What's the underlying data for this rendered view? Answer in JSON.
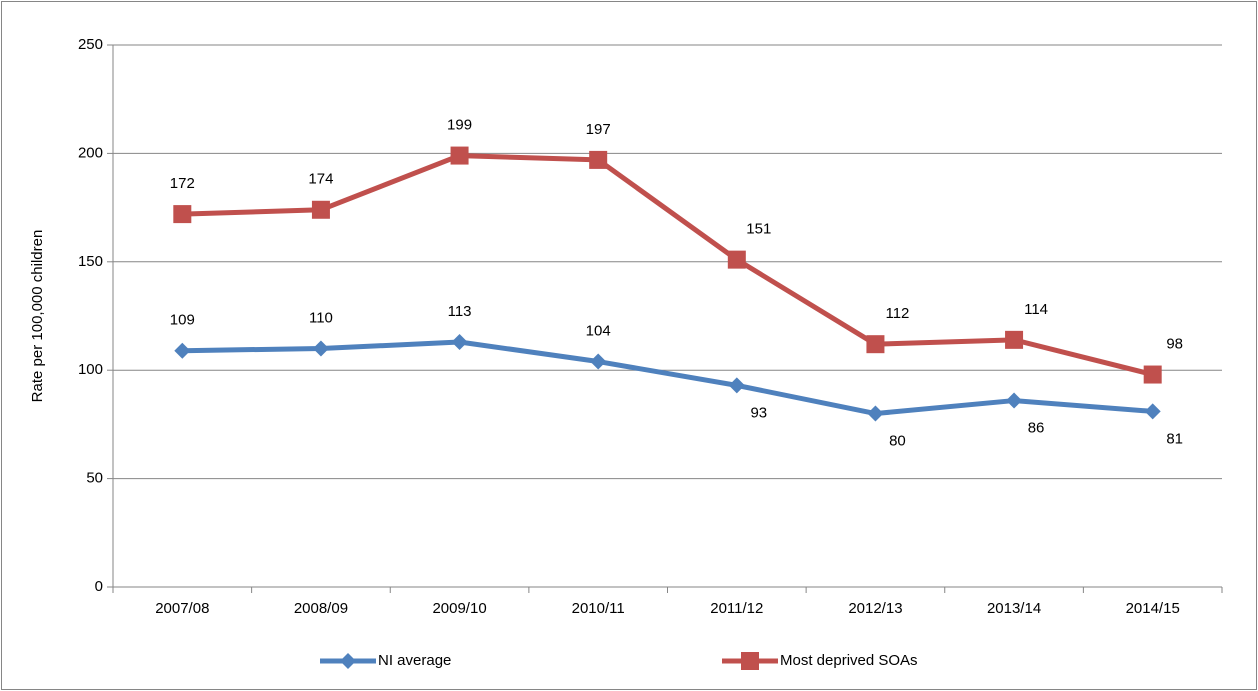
{
  "chart_data": {
    "type": "line",
    "y_label": "Rate per 100,000 children",
    "categories": [
      "2007/08",
      "2008/09",
      "2009/10",
      "2010/11",
      "2011/12",
      "2012/13",
      "2013/14",
      "2014/15"
    ],
    "series": [
      {
        "name": "NI average",
        "color": "#4f81bd",
        "marker": "diamond",
        "values": [
          109,
          110,
          113,
          104,
          93,
          80,
          86,
          81
        ]
      },
      {
        "name": "Most deprived SOAs",
        "color": "#c0504d",
        "marker": "square",
        "values": [
          172,
          174,
          199,
          197,
          151,
          112,
          114,
          98
        ]
      }
    ],
    "ylim": [
      0,
      250
    ],
    "yticks": [
      0,
      50,
      100,
      150,
      200,
      250
    ],
    "grid": true,
    "legend": "bottom"
  }
}
